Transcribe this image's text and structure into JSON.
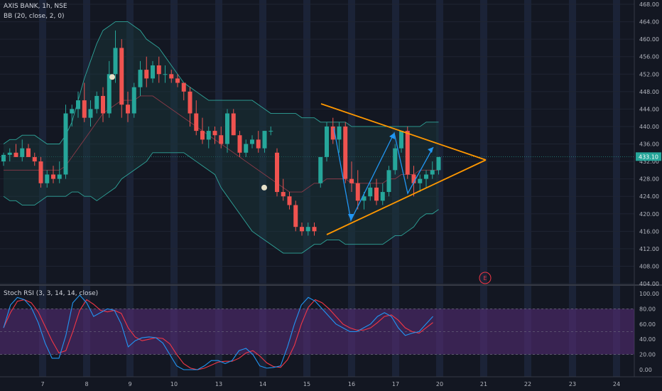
{
  "header": {
    "symbol": "AXIS BANK",
    "interval": "1h",
    "exchange": "NSE",
    "bb_label": "BB (20, close, 2, 0)",
    "stoch_label": "Stoch RSI (3, 3, 14, 14, close)"
  },
  "colors": {
    "background": "#131722",
    "up": "#26a69a",
    "down": "#ef5350",
    "bb_band": "#2fa59a",
    "bb_basis": "#8a3a48",
    "trendline": "#ff9800",
    "arrow": "#2196f3",
    "stoch_k": "#2196f3",
    "stoch_d": "#f23645",
    "stoch_fill": "#5a2d7a",
    "event_marker": "#f23645"
  },
  "price_axis": {
    "ticks": [
      "468.00",
      "464.00",
      "460.00",
      "456.00",
      "452.00",
      "448.00",
      "444.00",
      "440.00",
      "436.00",
      "432.00",
      "428.00",
      "424.00",
      "420.00",
      "416.00",
      "412.00",
      "408.00",
      "404.00"
    ],
    "last_price": "433.10"
  },
  "stoch_axis": {
    "ticks": [
      "100.00",
      "80.00",
      "60.00",
      "40.00",
      "20.00",
      "0.00"
    ]
  },
  "time_axis": {
    "labels": [
      "7",
      "8",
      "9",
      "10",
      "13",
      "14",
      "15",
      "16",
      "17",
      "20",
      "21",
      "22",
      "23",
      "24"
    ]
  },
  "event_marker": {
    "label": "E"
  },
  "chart_data": [
    {
      "type": "candlestick",
      "title": "AXIS BANK, 1h, NSE",
      "ylim": [
        404,
        468
      ],
      "candles_ohlc": [
        [
          432,
          434,
          431,
          433.5
        ],
        [
          433.5,
          435,
          432,
          434
        ],
        [
          434,
          436,
          433,
          433
        ],
        [
          433,
          437,
          432,
          435
        ],
        [
          435,
          436,
          433,
          433
        ],
        [
          433,
          434,
          431,
          432
        ],
        [
          432,
          433,
          426,
          427
        ],
        [
          427,
          430,
          426,
          429
        ],
        [
          429,
          431,
          427,
          428
        ],
        [
          428,
          432,
          427,
          429
        ],
        [
          429,
          445,
          428,
          443
        ],
        [
          443,
          445,
          440,
          444
        ],
        [
          444,
          448,
          442,
          446
        ],
        [
          446,
          450,
          441,
          442
        ],
        [
          442,
          446,
          440,
          444
        ],
        [
          444,
          448,
          443,
          447
        ],
        [
          447,
          449,
          441,
          443
        ],
        [
          443,
          455,
          442,
          452
        ],
        [
          452,
          462,
          450,
          458
        ],
        [
          458,
          460,
          442,
          445
        ],
        [
          445,
          448,
          441,
          443
        ],
        [
          443,
          450,
          442,
          449
        ],
        [
          449,
          455,
          447,
          453
        ],
        [
          453,
          456,
          449,
          451
        ],
        [
          451,
          455,
          450,
          454
        ],
        [
          454,
          456,
          450,
          452
        ],
        [
          452,
          454,
          450,
          452
        ],
        [
          452,
          453,
          450,
          451
        ],
        [
          451,
          452,
          449,
          450
        ],
        [
          450,
          449,
          446,
          448
        ],
        [
          448,
          449,
          440,
          443
        ],
        [
          443,
          446,
          438,
          439
        ],
        [
          439,
          442,
          436,
          437
        ],
        [
          437,
          440,
          435,
          439
        ],
        [
          439,
          440,
          436,
          438
        ],
        [
          438,
          440,
          435,
          436
        ],
        [
          436,
          444,
          434,
          443
        ],
        [
          443,
          444,
          438,
          438
        ],
        [
          438,
          439,
          433,
          434
        ],
        [
          434,
          437,
          433,
          436
        ],
        [
          436,
          438,
          435,
          437
        ],
        [
          437,
          439,
          434,
          435
        ],
        [
          435,
          439,
          434,
          439
        ],
        [
          439,
          440,
          438,
          439
        ],
        [
          434,
          435,
          424,
          425
        ],
        [
          425,
          428,
          423,
          424
        ],
        [
          424,
          425,
          421,
          422
        ],
        [
          422,
          423,
          416,
          417
        ],
        [
          417,
          418,
          415,
          416
        ],
        [
          416,
          418,
          415,
          417
        ],
        [
          417,
          418,
          415,
          416
        ],
        [
          427,
          433,
          426,
          433
        ],
        [
          433,
          441,
          432,
          440
        ],
        [
          440,
          442,
          436,
          437
        ],
        [
          437,
          441,
          434,
          440
        ],
        [
          440,
          441,
          427,
          428
        ],
        [
          428,
          432,
          425,
          427
        ],
        [
          427,
          430,
          421,
          423
        ],
        [
          423,
          425,
          421,
          424
        ],
        [
          424,
          427,
          423,
          426
        ],
        [
          426,
          428,
          422,
          423
        ],
        [
          423,
          427,
          422,
          425
        ],
        [
          425,
          431,
          424,
          430
        ],
        [
          430,
          436,
          429,
          435
        ],
        [
          435,
          439,
          434,
          439
        ],
        [
          439,
          440,
          428,
          429
        ],
        [
          429,
          431,
          424,
          427
        ],
        [
          427,
          429,
          425,
          428
        ],
        [
          428,
          430,
          426,
          429
        ],
        [
          429,
          432,
          428,
          430
        ],
        [
          430,
          433,
          429,
          433
        ]
      ],
      "volume_style_markers": [
        452,
        426
      ]
    },
    {
      "type": "line",
      "title": "BB (20, close, 2, 0)",
      "ylim": [
        404,
        468
      ],
      "series": [
        {
          "values": [
            436,
            437,
            437,
            438,
            438,
            438,
            437,
            436,
            436,
            436,
            438,
            441,
            446,
            451,
            455,
            459,
            462,
            463,
            464,
            464,
            464,
            463,
            462,
            460,
            459,
            458,
            456,
            454,
            452,
            450,
            449,
            448,
            447,
            446,
            446,
            446,
            446,
            446,
            446,
            446,
            446,
            445,
            444,
            443,
            443,
            443,
            443,
            443,
            442,
            442,
            442,
            441,
            441,
            441,
            441,
            441,
            440,
            440,
            440,
            440,
            440,
            440,
            440,
            440,
            440,
            440,
            440,
            440,
            441,
            441,
            441
          ]
        },
        {
          "values": [
            430,
            430,
            430,
            430,
            430,
            430,
            430,
            430,
            430,
            430,
            431,
            433,
            435,
            437,
            439,
            441,
            443,
            444,
            445,
            446,
            446,
            446,
            447,
            447,
            447,
            446,
            445,
            444,
            443,
            442,
            441,
            440,
            439,
            438,
            437,
            436,
            435,
            434,
            433,
            432,
            431,
            430,
            429,
            428,
            427,
            426,
            425,
            425,
            425,
            426,
            427,
            427,
            428,
            428,
            428,
            428,
            427,
            427,
            427,
            427,
            427,
            427,
            428,
            428,
            429,
            429,
            429,
            430,
            430,
            430,
            430
          ]
        },
        {
          "values": [
            424,
            423,
            423,
            422,
            422,
            422,
            423,
            424,
            424,
            424,
            424,
            425,
            425,
            424,
            424,
            423,
            424,
            425,
            426,
            428,
            429,
            430,
            431,
            432,
            434,
            434,
            434,
            434,
            434,
            434,
            433,
            432,
            431,
            430,
            429,
            426,
            424,
            422,
            420,
            418,
            416,
            415,
            414,
            413,
            412,
            411,
            411,
            411,
            411,
            412,
            413,
            413,
            414,
            414,
            414,
            413,
            413,
            413,
            413,
            413,
            413,
            413,
            414,
            415,
            415,
            416,
            417,
            419,
            420,
            420,
            421
          ]
        }
      ]
    },
    {
      "type": "line",
      "title": "Stoch RSI (3, 3, 14, 14, close)",
      "ylim": [
        0,
        100
      ],
      "series": [
        {
          "values": [
            55,
            85,
            95,
            92,
            82,
            62,
            35,
            15,
            15,
            45,
            88,
            98,
            88,
            70,
            75,
            80,
            78,
            60,
            30,
            38,
            42,
            43,
            42,
            35,
            20,
            5,
            0,
            0,
            0,
            5,
            12,
            12,
            8,
            12,
            25,
            28,
            20,
            5,
            2,
            3,
            5,
            30,
            60,
            85,
            95,
            90,
            80,
            70,
            60,
            55,
            50,
            50,
            55,
            60,
            70,
            75,
            70,
            55,
            45,
            48,
            50,
            60,
            70
          ]
        },
        {
          "values": [
            55,
            75,
            90,
            92,
            88,
            76,
            57,
            38,
            22,
            25,
            50,
            78,
            92,
            86,
            78,
            76,
            78,
            74,
            55,
            43,
            38,
            40,
            42,
            41,
            34,
            20,
            8,
            2,
            0,
            2,
            6,
            10,
            11,
            11,
            15,
            22,
            25,
            18,
            9,
            4,
            3,
            13,
            32,
            60,
            82,
            92,
            88,
            80,
            70,
            60,
            55,
            52,
            52,
            55,
            62,
            70,
            72,
            65,
            55,
            50,
            48,
            55,
            62
          ]
        }
      ],
      "levels": [
        80,
        20
      ]
    }
  ]
}
